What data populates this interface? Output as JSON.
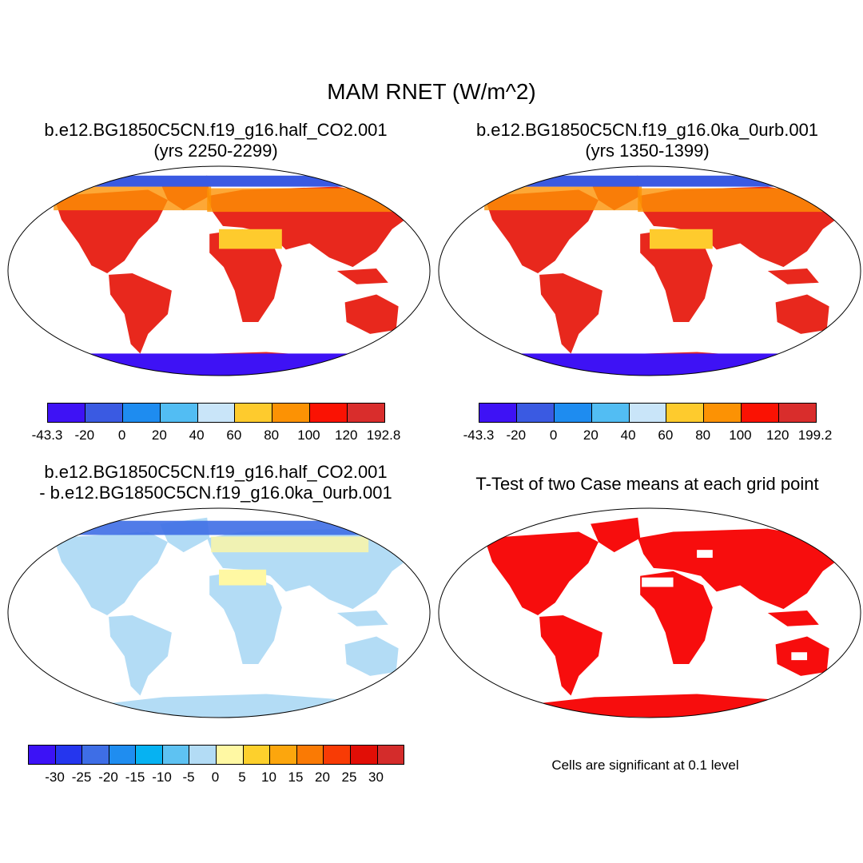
{
  "main_title": "MAM RNET (W/m^2)",
  "panels": [
    {
      "title1": "b.e12.BG1850C5CN.f19_g16.half_CO2.001",
      "title2": "(yrs 2250-2299)"
    },
    {
      "title1": "b.e12.BG1850C5CN.f19_g16.0ka_0urb.001",
      "title2": "(yrs 1350-1399)"
    },
    {
      "title1": "b.e12.BG1850C5CN.f19_g16.half_CO2.001",
      "title2": "- b.e12.BG1850C5CN.f19_g16.0ka_0urb.001"
    },
    {
      "title1": "T-Test of two Case means at each grid point",
      "title2": ""
    }
  ],
  "legends": {
    "panel1": {
      "colors": [
        "#3e12f5",
        "#3a5ae2",
        "#1e8cf0",
        "#52bdf3",
        "#c9e5f9",
        "#fecb2d",
        "#fc9204",
        "#fa1203",
        "#d92d2c"
      ],
      "labels": [
        "-43.3",
        "-20",
        "0",
        "20",
        "40",
        "60",
        "80",
        "100",
        "120",
        "192.8"
      ]
    },
    "panel2": {
      "colors": [
        "#3e12f5",
        "#3a5ae2",
        "#1e8cf0",
        "#52bdf3",
        "#c9e5f9",
        "#fecb2d",
        "#fc9204",
        "#fa1203",
        "#d92d2c"
      ],
      "labels": [
        "-43.3",
        "-20",
        "0",
        "20",
        "40",
        "60",
        "80",
        "100",
        "120",
        "199.2"
      ]
    },
    "panel3": {
      "colors": [
        "#3c12f6",
        "#2536ee",
        "#3e6ee6",
        "#1f8df0",
        "#06b2f2",
        "#5ec2f2",
        "#b3dcf5",
        "#fff8a3",
        "#fdd02c",
        "#fca60d",
        "#fa7a04",
        "#f83b05",
        "#e10e06",
        "#d42c2b"
      ],
      "labels": [
        "-30",
        "-25",
        "-20",
        "-15",
        "-10",
        "-5",
        "0",
        "5",
        "10",
        "15",
        "20",
        "25",
        "30"
      ]
    }
  },
  "ttest_note": "Cells are significant at 0.1 level"
}
